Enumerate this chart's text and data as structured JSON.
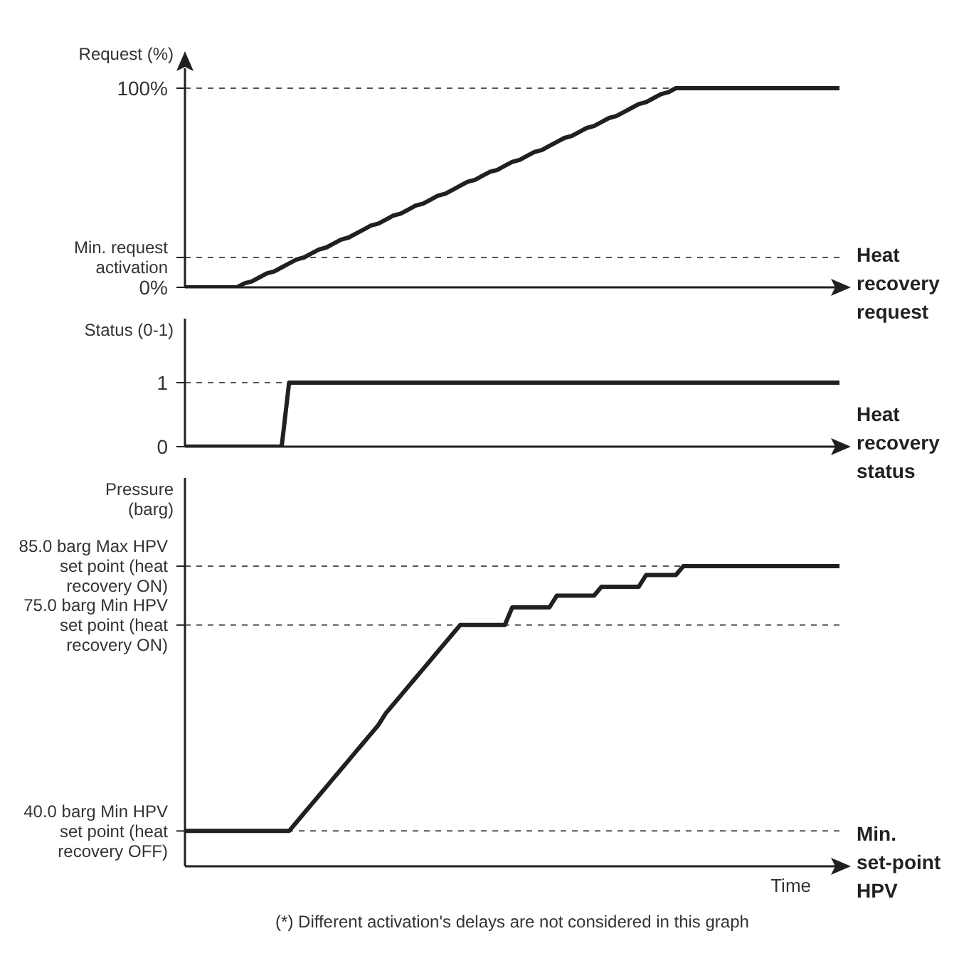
{
  "chart_data": [
    {
      "type": "line",
      "ylabel": "Request (%)",
      "categories": [
        null,
        null,
        null,
        null,
        null,
        null,
        null,
        null,
        null,
        null,
        null,
        null,
        null,
        null,
        null,
        null,
        null,
        null,
        null,
        null,
        null,
        null,
        null,
        null,
        null,
        null,
        null,
        null,
        null,
        null,
        null,
        null,
        null,
        null,
        null,
        null,
        null,
        null,
        null,
        null,
        null,
        null,
        null,
        null,
        null,
        null,
        null,
        null,
        null,
        null,
        null,
        null,
        null,
        null,
        null,
        null,
        null,
        null,
        null,
        null,
        null,
        null,
        null,
        null,
        null,
        null,
        null,
        null,
        null,
        null,
        null,
        null,
        null,
        null,
        null,
        null,
        null,
        null,
        null,
        null,
        null,
        null,
        null,
        null,
        null,
        null,
        null,
        null,
        null
      ],
      "series": [
        {
          "name": "Heat recovery request",
          "color": "#231f20",
          "values": [
            0,
            0,
            0,
            0,
            0,
            0,
            0,
            0,
            2,
            3,
            5,
            7,
            8,
            10,
            12,
            14,
            15,
            17,
            19,
            20,
            22,
            24,
            25,
            27,
            29,
            31,
            32,
            34,
            36,
            37,
            39,
            41,
            42,
            44,
            46,
            47,
            49,
            51,
            53,
            54,
            56,
            58,
            59,
            61,
            63,
            64,
            66,
            68,
            69,
            71,
            73,
            75,
            76,
            78,
            80,
            81,
            83,
            85,
            86,
            88,
            90,
            92,
            93,
            95,
            97,
            98,
            100,
            100,
            100,
            100,
            100,
            100,
            100,
            100,
            100,
            100,
            100,
            100,
            100,
            100,
            100,
            100,
            100,
            100,
            100,
            100,
            100,
            100,
            100
          ]
        }
      ],
      "ylim": [
        0,
        110
      ],
      "yticks": [
        {
          "value": 0,
          "label": "0%"
        },
        {
          "value": 15,
          "label": "Min. request activation"
        },
        {
          "value": 100,
          "label": "100%"
        }
      ],
      "grid": "y",
      "tick_labels": "y"
    },
    {
      "type": "line",
      "ylabel": "Status (0-1)",
      "categories": [
        null,
        null,
        null,
        null,
        null,
        null,
        null,
        null,
        null,
        null,
        null,
        null,
        null,
        null,
        null,
        null,
        null,
        null,
        null,
        null,
        null,
        null,
        null,
        null,
        null,
        null,
        null,
        null,
        null,
        null,
        null,
        null,
        null,
        null,
        null,
        null,
        null,
        null,
        null,
        null,
        null,
        null,
        null,
        null,
        null,
        null,
        null,
        null,
        null,
        null,
        null,
        null,
        null,
        null,
        null,
        null,
        null,
        null,
        null,
        null,
        null,
        null,
        null,
        null,
        null,
        null,
        null,
        null,
        null,
        null,
        null,
        null,
        null,
        null,
        null,
        null,
        null,
        null,
        null,
        null,
        null,
        null,
        null,
        null,
        null,
        null,
        null,
        null,
        null
      ],
      "series": [
        {
          "name": "Heat recovery status",
          "color": "#231f20",
          "values": [
            0,
            0,
            0,
            0,
            0,
            0,
            0,
            0,
            0,
            0,
            0,
            0,
            0,
            0,
            1,
            1,
            1,
            1,
            1,
            1,
            1,
            1,
            1,
            1,
            1,
            1,
            1,
            1,
            1,
            1,
            1,
            1,
            1,
            1,
            1,
            1,
            1,
            1,
            1,
            1,
            1,
            1,
            1,
            1,
            1,
            1,
            1,
            1,
            1,
            1,
            1,
            1,
            1,
            1,
            1,
            1,
            1,
            1,
            1,
            1,
            1,
            1,
            1,
            1,
            1,
            1,
            1,
            1,
            1,
            1,
            1,
            1,
            1,
            1,
            1,
            1,
            1,
            1,
            1,
            1,
            1,
            1,
            1,
            1,
            1,
            1,
            1,
            1,
            1
          ]
        }
      ],
      "ylim": [
        0,
        2
      ],
      "yticks": [
        0,
        1
      ],
      "grid": "y",
      "tick_labels": "y"
    },
    {
      "type": "line",
      "ylabel": "Pressure (barg)",
      "xlabel": "Time",
      "categories": [
        null,
        null,
        null,
        null,
        null,
        null,
        null,
        null,
        null,
        null,
        null,
        null,
        null,
        null,
        null,
        null,
        null,
        null,
        null,
        null,
        null,
        null,
        null,
        null,
        null,
        null,
        null,
        null,
        null,
        null,
        null,
        null,
        null,
        null,
        null,
        null,
        null,
        null,
        null,
        null,
        null,
        null,
        null,
        null,
        null,
        null,
        null,
        null,
        null,
        null,
        null,
        null,
        null,
        null,
        null,
        null,
        null,
        null,
        null,
        null,
        null,
        null,
        null,
        null,
        null,
        null,
        null,
        null,
        null,
        null,
        null,
        null,
        null,
        null,
        null,
        null,
        null,
        null,
        null,
        null,
        null,
        null,
        null,
        null,
        null,
        null,
        null,
        null,
        null
      ],
      "series": [
        {
          "name": "Min. set-point HPV",
          "color": "#231f20",
          "values": [
            40,
            40,
            40,
            40,
            40,
            40,
            40,
            40,
            40,
            40,
            40,
            40,
            40,
            40,
            40,
            41.5,
            43,
            44.5,
            46,
            47.5,
            49,
            50.5,
            52,
            53.5,
            55,
            56.5,
            58,
            60,
            61.5,
            63,
            64.5,
            66,
            67.5,
            69,
            70.5,
            72,
            73.5,
            75,
            75,
            75,
            75,
            75,
            75,
            75,
            78,
            78,
            78,
            78,
            78,
            78,
            80,
            80,
            80,
            80,
            80,
            80,
            81.5,
            81.5,
            81.5,
            81.5,
            81.5,
            81.5,
            83.5,
            83.5,
            83.5,
            83.5,
            83.5,
            85,
            85,
            85,
            85,
            85,
            85,
            85,
            85,
            85,
            85,
            85,
            85,
            85,
            85,
            85,
            85,
            85,
            85,
            85,
            85,
            85,
            85
          ]
        }
      ],
      "ylim": [
        34,
        100
      ],
      "yticks": [
        {
          "value": 40,
          "label": "40.0 barg Min HPV set point (heat recovery OFF)"
        },
        {
          "value": 75,
          "label": "75.0 barg Min HPV set point (heat recovery ON)"
        },
        {
          "value": 85,
          "label": "85.0 barg Max HPV set point (heat recovery ON)"
        }
      ],
      "grid": "y",
      "tick_labels": "y",
      "annotations": [
        "(*) Different activation's delays are not considered in this graph"
      ]
    }
  ]
}
